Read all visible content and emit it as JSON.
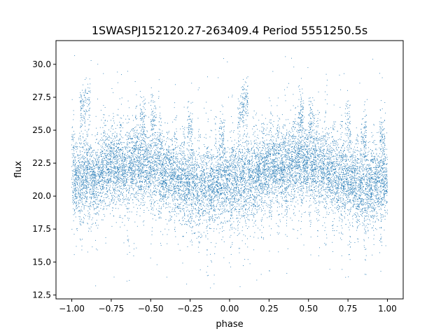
{
  "chart_data": {
    "type": "scatter",
    "title": "1SWASPJ152120.27-263409.4 Period 5551250.5s",
    "xlabel": "phase",
    "ylabel": "flux",
    "xlim": [
      -1.1,
      1.1
    ],
    "ylim": [
      12.2,
      31.8
    ],
    "xticks": [
      -1.0,
      -0.75,
      -0.5,
      -0.25,
      0.0,
      0.25,
      0.5,
      0.75,
      1.0
    ],
    "xtick_labels": [
      "−1.00",
      "−0.75",
      "−0.50",
      "−0.25",
      "0.00",
      "0.25",
      "0.50",
      "0.75",
      "1.00"
    ],
    "yticks": [
      12.5,
      15.0,
      17.5,
      20.0,
      22.5,
      25.0,
      27.5,
      30.0
    ],
    "ytick_labels": [
      "12.5",
      "15.0",
      "17.5",
      "20.0",
      "22.5",
      "25.0",
      "27.5",
      "30.0"
    ],
    "grid": false,
    "marker_color": "#1f77b4",
    "trend": {
      "phase": [
        -1.0,
        -0.95,
        -0.9,
        -0.85,
        -0.8,
        -0.75,
        -0.7,
        -0.65,
        -0.6,
        -0.55,
        -0.5,
        -0.45,
        -0.4,
        -0.35,
        -0.3,
        -0.25,
        -0.2,
        -0.15,
        -0.1,
        -0.05,
        0.0,
        0.05,
        0.1,
        0.15,
        0.2,
        0.25,
        0.3,
        0.35,
        0.4,
        0.45,
        0.5,
        0.55,
        0.6,
        0.65,
        0.7,
        0.75,
        0.8,
        0.85,
        0.9,
        0.95,
        1.0
      ],
      "flux": [
        21.3,
        21.2,
        21.7,
        21.0,
        22.0,
        22.2,
        22.2,
        22.0,
        22.6,
        22.5,
        22.3,
        22.0,
        21.7,
        21.5,
        21.2,
        21.0,
        20.8,
        20.6,
        20.8,
        21.0,
        21.0,
        21.2,
        21.3,
        21.6,
        21.8,
        22.0,
        22.2,
        22.1,
        22.4,
        22.5,
        22.4,
        22.3,
        22.0,
        21.7,
        21.3,
        21.0,
        20.8,
        20.6,
        20.8,
        21.0,
        21.2
      ]
    },
    "scatter_sd": 1.4,
    "point_count": 14000,
    "upper_clumps": [
      {
        "phase": -0.93,
        "flux": 26.5
      },
      {
        "phase": -0.9,
        "flux": 27.2
      },
      {
        "phase": -0.55,
        "flux": 25.8
      },
      {
        "phase": -0.48,
        "flux": 25.5
      },
      {
        "phase": -0.25,
        "flux": 25.5
      },
      {
        "phase": -0.05,
        "flux": 24.5
      },
      {
        "phase": 0.07,
        "flux": 26.5
      },
      {
        "phase": 0.1,
        "flux": 27.2
      },
      {
        "phase": 0.45,
        "flux": 25.8
      },
      {
        "phase": 0.52,
        "flux": 25.5
      },
      {
        "phase": 0.75,
        "flux": 25.5
      },
      {
        "phase": 0.85,
        "flux": 24.5
      },
      {
        "phase": 0.97,
        "flux": 24.6
      }
    ]
  }
}
